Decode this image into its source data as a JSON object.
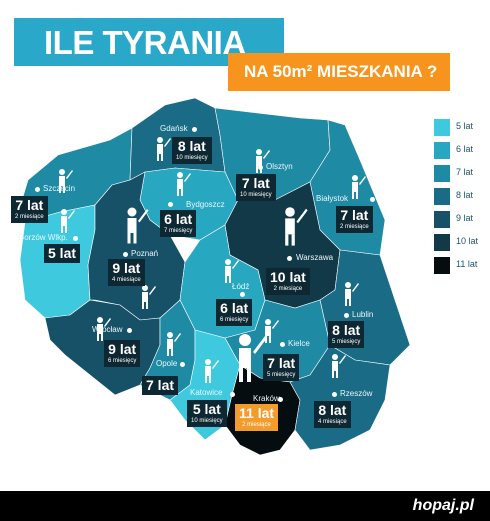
{
  "title": "ILE TYRANIA",
  "subtitle": "NA 50m² MIESZKANIA ?",
  "legend": [
    {
      "label": "5 lat",
      "color": "#3ec9de"
    },
    {
      "label": "6 lat",
      "color": "#27a7c0"
    },
    {
      "label": "7 lat",
      "color": "#1f8aa4"
    },
    {
      "label": "8 lat",
      "color": "#1a6b86"
    },
    {
      "label": "9 lat",
      "color": "#165168"
    },
    {
      "label": "10 lat",
      "color": "#113947"
    },
    {
      "label": "11 lat",
      "color": "#050d11"
    }
  ],
  "regions": {
    "pomorskie": {
      "city": "Gdańsk",
      "years": "8 lat",
      "months": "10 miesięcy",
      "color": "#1a6b86"
    },
    "warminsko_mazurskie": {
      "city": "Olsztyn",
      "years": "7 lat",
      "months": "10 miesięcy",
      "color": "#1f8aa4"
    },
    "zachodniopomorskie": {
      "city": "Szczecin",
      "years": "7 lat",
      "months": "2 miesiące",
      "color": "#1f8aa4"
    },
    "podlaskie": {
      "city": "Białystok",
      "years": "7 lat",
      "months": "2 miesiące",
      "color": "#1f8aa4"
    },
    "kujawsko_pomorskie": {
      "city": "Bydgoszcz",
      "years": "6 lat",
      "months": "7 miesięcy",
      "color": "#27a7c0"
    },
    "lubuskie": {
      "city": "Gorzów Wlkp.",
      "years": "5 lat",
      "months": "",
      "color": "#3ec9de"
    },
    "wielkopolskie": {
      "city": "Poznań",
      "years": "9 lat",
      "months": "4 miesiące",
      "color": "#165168"
    },
    "mazowieckie": {
      "city": "Warszawa",
      "years": "10 lat",
      "months": "2 miesiące",
      "color": "#113947"
    },
    "lodzkie": {
      "city": "Łódź",
      "years": "6 lat",
      "months": "6 miesięcy",
      "color": "#27a7c0"
    },
    "lubelskie": {
      "city": "Lublin",
      "years": "8 lat",
      "months": "5 miesięcy",
      "color": "#1a6b86"
    },
    "dolnoslaskie": {
      "city": "Wrocław",
      "years": "9 lat",
      "months": "6 miesięcy",
      "color": "#165168"
    },
    "opolskie": {
      "city": "Opole",
      "years": "7 lat",
      "months": "",
      "color": "#1f8aa4"
    },
    "swietokrzyskie": {
      "city": "Kielce",
      "years": "7 lat",
      "months": "5 miesięcy",
      "color": "#1f8aa4"
    },
    "slaskie": {
      "city": "Katowice",
      "years": "5 lat",
      "months": "10 miesięcy",
      "color": "#3ec9de"
    },
    "malopolskie": {
      "city": "Kraków",
      "years": "11 lat",
      "months": "2 miesiące",
      "color": "#050d11"
    },
    "podkarpackie": {
      "city": "Rzeszów",
      "years": "8 lat",
      "months": "4 miesiące",
      "color": "#1a6b86"
    }
  },
  "brand": "hopaj.pl"
}
